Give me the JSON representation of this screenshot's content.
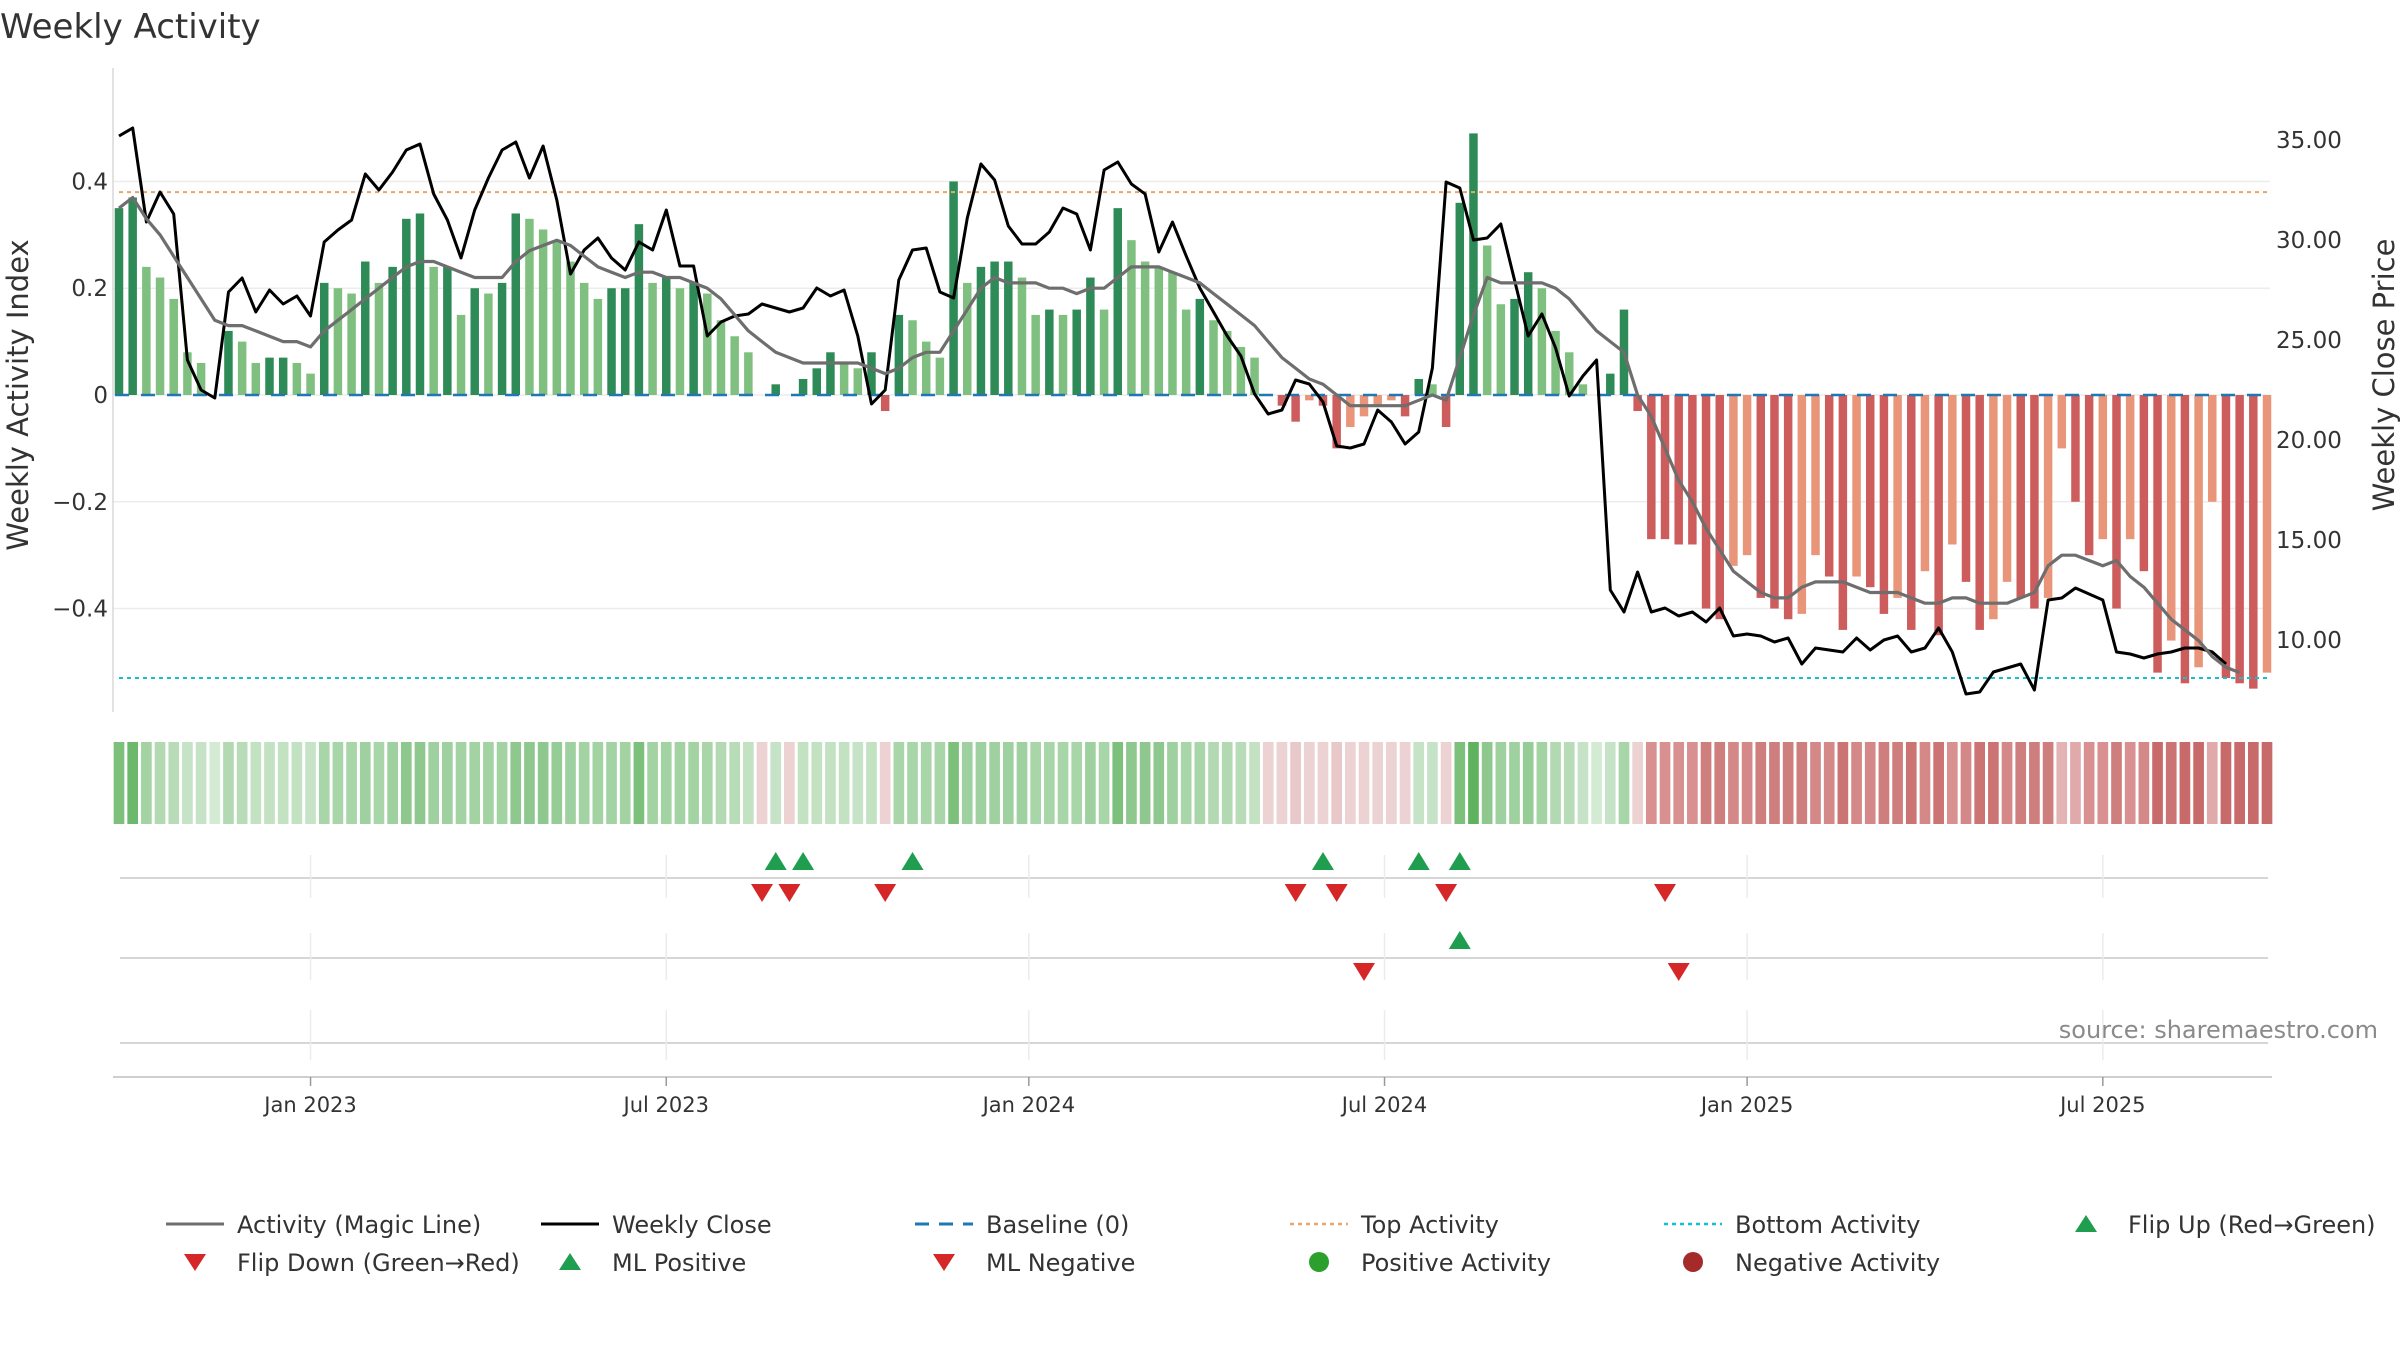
{
  "chart_data": {
    "type": "bar",
    "title": "Weekly Activity",
    "ylabel_left": "Weekly Activity Index",
    "ylabel_right": "Weekly Close Price",
    "source": "source: sharemaestro.com",
    "left_axis": {
      "ylim": [
        -0.59,
        0.59
      ],
      "ticks": [
        0.4,
        0.2,
        0,
        -0.2,
        -0.4
      ],
      "tick_labels": [
        "0.4",
        "0.2",
        "0",
        "−0.2",
        "−0.4"
      ]
    },
    "right_axis": {
      "ylim": [
        6.5,
        38.0
      ],
      "ticks": [
        35,
        30,
        25,
        20,
        15,
        10
      ],
      "tick_labels": [
        "35.00",
        "30.00",
        "25.00",
        "20.00",
        "15.00",
        "10.00"
      ]
    },
    "x_tick_labels": [
      "Jan 2023",
      "Jul 2023",
      "Jan 2024",
      "Jul 2024",
      "Jan 2025",
      "Jul 2025"
    ],
    "x_tick_week_index": [
      14,
      40,
      66.5,
      92.5,
      119,
      145
    ],
    "week_count": 158,
    "top_activity": 0.38,
    "bottom_activity": -0.53,
    "baseline": 0,
    "activity_bars": [
      0.35,
      0.37,
      0.24,
      0.22,
      0.18,
      0.08,
      0.06,
      0.0,
      0.12,
      0.1,
      0.06,
      0.07,
      0.07,
      0.06,
      0.04,
      0.21,
      0.2,
      0.19,
      0.25,
      0.21,
      0.24,
      0.33,
      0.34,
      0.24,
      0.24,
      0.15,
      0.2,
      0.19,
      0.21,
      0.34,
      0.33,
      0.31,
      0.29,
      0.25,
      0.21,
      0.18,
      0.2,
      0.2,
      0.32,
      0.21,
      0.22,
      0.2,
      0.21,
      0.19,
      0.14,
      0.11,
      0.08,
      0.0,
      0.02,
      0.0,
      0.03,
      0.05,
      0.08,
      0.06,
      0.05,
      0.08,
      -0.03,
      0.15,
      0.14,
      0.1,
      0.07,
      0.4,
      0.21,
      0.24,
      0.25,
      0.25,
      0.22,
      0.15,
      0.16,
      0.15,
      0.16,
      0.22,
      0.16,
      0.35,
      0.29,
      0.25,
      0.24,
      0.23,
      0.16,
      0.18,
      0.14,
      0.12,
      0.09,
      0.07,
      0.0,
      -0.02,
      -0.05,
      -0.01,
      -0.02,
      -0.1,
      -0.06,
      -0.04,
      -0.02,
      -0.01,
      -0.04,
      0.03,
      0.02,
      -0.06,
      0.36,
      0.49,
      0.28,
      0.17,
      0.18,
      0.23,
      0.2,
      0.12,
      0.08,
      0.02,
      0.0,
      0.04,
      0.16,
      -0.03,
      -0.27,
      -0.27,
      -0.28,
      -0.28,
      -0.4,
      -0.42,
      -0.32,
      -0.3,
      -0.38,
      -0.4,
      -0.42,
      -0.41,
      -0.3,
      -0.34,
      -0.44,
      -0.34,
      -0.36,
      -0.41,
      -0.38,
      -0.44,
      -0.33,
      -0.45,
      -0.28,
      -0.35,
      -0.44,
      -0.42,
      -0.35,
      -0.38,
      -0.4,
      -0.38,
      -0.1,
      -0.2,
      -0.3,
      -0.27,
      -0.4,
      -0.27,
      -0.33,
      -0.52,
      -0.46,
      -0.54,
      -0.51,
      -0.2,
      -0.53,
      -0.54,
      -0.55,
      -0.52
    ],
    "series": [
      {
        "name": "Weekly Close",
        "axis": "right",
        "values": [
          35.2,
          35.6,
          30.9,
          32.4,
          31.3,
          24.0,
          22.5,
          22.1,
          27.4,
          28.1,
          26.4,
          27.5,
          26.8,
          27.2,
          26.2,
          29.9,
          30.5,
          31.0,
          33.3,
          32.5,
          33.4,
          34.5,
          34.8,
          32.3,
          31.0,
          29.1,
          31.5,
          33.1,
          34.5,
          34.9,
          33.1,
          34.7,
          32.0,
          28.3,
          29.5,
          30.1,
          29.1,
          28.5,
          29.9,
          29.5,
          31.5,
          28.7,
          28.7,
          25.2,
          25.9,
          26.2,
          26.3,
          26.8,
          26.6,
          26.4,
          26.6,
          27.6,
          27.2,
          27.5,
          25.2,
          21.8,
          22.5,
          28.0,
          29.5,
          29.6,
          27.4,
          27.1,
          31.1,
          33.8,
          33.0,
          30.7,
          29.8,
          29.8,
          30.4,
          31.6,
          31.3,
          29.5,
          33.5,
          33.9,
          32.8,
          32.3,
          29.4,
          30.9,
          29.2,
          27.6,
          26.4,
          25.2,
          24.2,
          22.3,
          21.3,
          21.5,
          23.0,
          22.8,
          21.9,
          19.7,
          19.6,
          19.8,
          21.5,
          20.9,
          19.8,
          20.4,
          23.6,
          32.9,
          32.6,
          30.0,
          30.1,
          30.8,
          28.0,
          25.2,
          26.3,
          24.6,
          22.2,
          23.2,
          24.0,
          12.5,
          11.4,
          13.4,
          11.4,
          11.6,
          11.2,
          11.4,
          10.9,
          11.6,
          10.2,
          10.3,
          10.2,
          9.9,
          10.1,
          8.8,
          9.6,
          9.5,
          9.4,
          10.1,
          9.5,
          10.0,
          10.2,
          9.4,
          9.6,
          10.6,
          9.4,
          7.3,
          7.4,
          8.4,
          8.6,
          8.8,
          7.5,
          12.0,
          12.1,
          12.6,
          12.3,
          12.0,
          9.4,
          9.3,
          9.1,
          9.3,
          9.4,
          9.6,
          9.6,
          9.4,
          8.8
        ]
      },
      {
        "name": "Activity (Magic Line)",
        "axis": "left",
        "values": [
          0.35,
          0.37,
          0.33,
          0.3,
          0.26,
          0.22,
          0.18,
          0.14,
          0.13,
          0.13,
          0.12,
          0.11,
          0.1,
          0.1,
          0.09,
          0.12,
          0.14,
          0.16,
          0.18,
          0.2,
          0.22,
          0.24,
          0.25,
          0.25,
          0.24,
          0.23,
          0.22,
          0.22,
          0.22,
          0.25,
          0.27,
          0.28,
          0.29,
          0.28,
          0.26,
          0.24,
          0.23,
          0.22,
          0.23,
          0.23,
          0.22,
          0.22,
          0.21,
          0.2,
          0.18,
          0.15,
          0.12,
          0.1,
          0.08,
          0.07,
          0.06,
          0.06,
          0.06,
          0.06,
          0.06,
          0.05,
          0.04,
          0.05,
          0.07,
          0.08,
          0.08,
          0.12,
          0.16,
          0.2,
          0.22,
          0.21,
          0.21,
          0.21,
          0.2,
          0.2,
          0.19,
          0.2,
          0.2,
          0.22,
          0.24,
          0.24,
          0.24,
          0.23,
          0.22,
          0.21,
          0.19,
          0.17,
          0.15,
          0.13,
          0.1,
          0.07,
          0.05,
          0.03,
          0.02,
          0.0,
          -0.02,
          -0.02,
          -0.02,
          -0.02,
          -0.02,
          -0.01,
          0.0,
          -0.01,
          0.07,
          0.15,
          0.22,
          0.21,
          0.21,
          0.21,
          0.21,
          0.2,
          0.18,
          0.15,
          0.12,
          0.1,
          0.08,
          0.0,
          -0.04,
          -0.1,
          -0.16,
          -0.2,
          -0.25,
          -0.29,
          -0.33,
          -0.35,
          -0.37,
          -0.38,
          -0.38,
          -0.36,
          -0.35,
          -0.35,
          -0.35,
          -0.36,
          -0.37,
          -0.37,
          -0.37,
          -0.38,
          -0.39,
          -0.39,
          -0.38,
          -0.38,
          -0.39,
          -0.39,
          -0.39,
          -0.38,
          -0.37,
          -0.32,
          -0.3,
          -0.3,
          -0.31,
          -0.32,
          -0.31,
          -0.34,
          -0.36,
          -0.39,
          -0.42,
          -0.44,
          -0.46,
          -0.49,
          -0.51,
          -0.52
        ]
      }
    ],
    "activity_strip_colors": [
      "#7cc07c",
      "#6cb86c",
      "#a3d3a3",
      "#b2d9b2",
      "#b8dcb8",
      "#c7e3c7",
      "#c7e3c7",
      "#d3ebd3",
      "#b2d9b2",
      "#b8dcb8",
      "#c2e2c2",
      "#c2e2c2",
      "#c2e2c2",
      "#c2e2c2",
      "#c7e3c7",
      "#a8d6a8",
      "#a8d6a8",
      "#a8d6a8",
      "#9fd09f",
      "#a8d6a8",
      "#9fd09f",
      "#8fc88f",
      "#8fc88f",
      "#9fd09f",
      "#9fd09f",
      "#a3d3a3",
      "#a3d3a3",
      "#a3d3a3",
      "#a3d3a3",
      "#8fc88f",
      "#8fc88f",
      "#8fc88f",
      "#96cc96",
      "#9fd09f",
      "#a3d3a3",
      "#a3d3a3",
      "#a3d3a3",
      "#a3d3a3",
      "#7cc07c",
      "#a3d3a3",
      "#a3d3a3",
      "#a3d3a3",
      "#a3d3a3",
      "#a8d6a8",
      "#b2d9b2",
      "#b8dcb8",
      "#c2e2c2",
      "#ecd2d2",
      "#c7e3c7",
      "#ecd2d2",
      "#c2e2c2",
      "#c2e2c2",
      "#c2e2c2",
      "#c2e2c2",
      "#c7e3c7",
      "#c2e2c2",
      "#ecd2d2",
      "#a8d6a8",
      "#a8d6a8",
      "#a8d6a8",
      "#a8d6a8",
      "#7cc07c",
      "#9fd09f",
      "#9fd09f",
      "#9fd09f",
      "#9fd09f",
      "#9fd09f",
      "#a8d6a8",
      "#a8d6a8",
      "#a8d6a8",
      "#a8d6a8",
      "#9fd09f",
      "#a8d6a8",
      "#7cc07c",
      "#8fc88f",
      "#8fc88f",
      "#8fc88f",
      "#9fd09f",
      "#a8d6a8",
      "#a8d6a8",
      "#b2d9b2",
      "#b2d9b2",
      "#b8dcb8",
      "#c2e2c2",
      "#ecd2d2",
      "#ecd2d2",
      "#e8c8c8",
      "#ecd2d2",
      "#ecd2d2",
      "#e8c8c8",
      "#ecd2d2",
      "#ecd2d2",
      "#ecd2d2",
      "#ecd2d2",
      "#ecd2d2",
      "#c7e3c7",
      "#c7e3c7",
      "#ecd2d2",
      "#7cc07c",
      "#5fb35f",
      "#8fc88f",
      "#9fd09f",
      "#9fd09f",
      "#96cc96",
      "#a3d3a3",
      "#b2d9b2",
      "#b8dcb8",
      "#c7e3c7",
      "#d3ebd3",
      "#c7e3c7",
      "#a8d6a8",
      "#ecd2d2",
      "#d89090",
      "#d89090",
      "#d89090",
      "#d89090",
      "#cf7e7e",
      "#cf7e7e",
      "#d48888",
      "#d48888",
      "#cf7e7e",
      "#cf7e7e",
      "#cf7e7e",
      "#cf7e7e",
      "#d48888",
      "#d48888",
      "#cc7474",
      "#d48888",
      "#d48888",
      "#cf7e7e",
      "#cf7e7e",
      "#cc7474",
      "#d48888",
      "#cc7474",
      "#d89090",
      "#d48888",
      "#cc7474",
      "#cc7474",
      "#d48888",
      "#cf7e7e",
      "#cf7e7e",
      "#cf7e7e",
      "#e4b4b4",
      "#e0aaaa",
      "#d89090",
      "#d89090",
      "#cf7e7e",
      "#d89090",
      "#d48888",
      "#c86a6a",
      "#cc7474",
      "#c86a6a",
      "#c86a6a",
      "#e0aaaa",
      "#c86a6a",
      "#c86a6a",
      "#c86a6a",
      "#c86a6a"
    ],
    "markers": {
      "flip_up_weeks": [
        48,
        50,
        58,
        88,
        95,
        98
      ],
      "flip_down_weeks": [
        47,
        49,
        56,
        86,
        89,
        97,
        113
      ],
      "ml_positive_weeks": [
        98
      ],
      "ml_negative_weeks": [
        91,
        114
      ]
    },
    "legend": [
      "Activity (Magic Line)",
      "Weekly Close",
      "Baseline (0)",
      "Top Activity",
      "Bottom Activity",
      "Flip Up (Red→Green)",
      "Flip Down (Green→Red)",
      "ML Positive",
      "ML Negative",
      "Positive Activity",
      "Negative Activity"
    ],
    "colors": {
      "bar_pos_strong": "#2e8b57",
      "bar_pos_light": "#7fbf7f",
      "bar_neg_strong": "#cd5c5c",
      "bar_neg_light": "#e8957a",
      "magic_line": "#6e6e6e",
      "close_line": "#000000",
      "baseline": "#1f77b4",
      "top_activity": "#e5a86b",
      "bottom_activity": "#17becf",
      "flip_up": "#1f9e4f",
      "flip_down": "#d62728",
      "positive_activity": "#2ca02c",
      "negative_activity": "#a52a2a"
    }
  }
}
